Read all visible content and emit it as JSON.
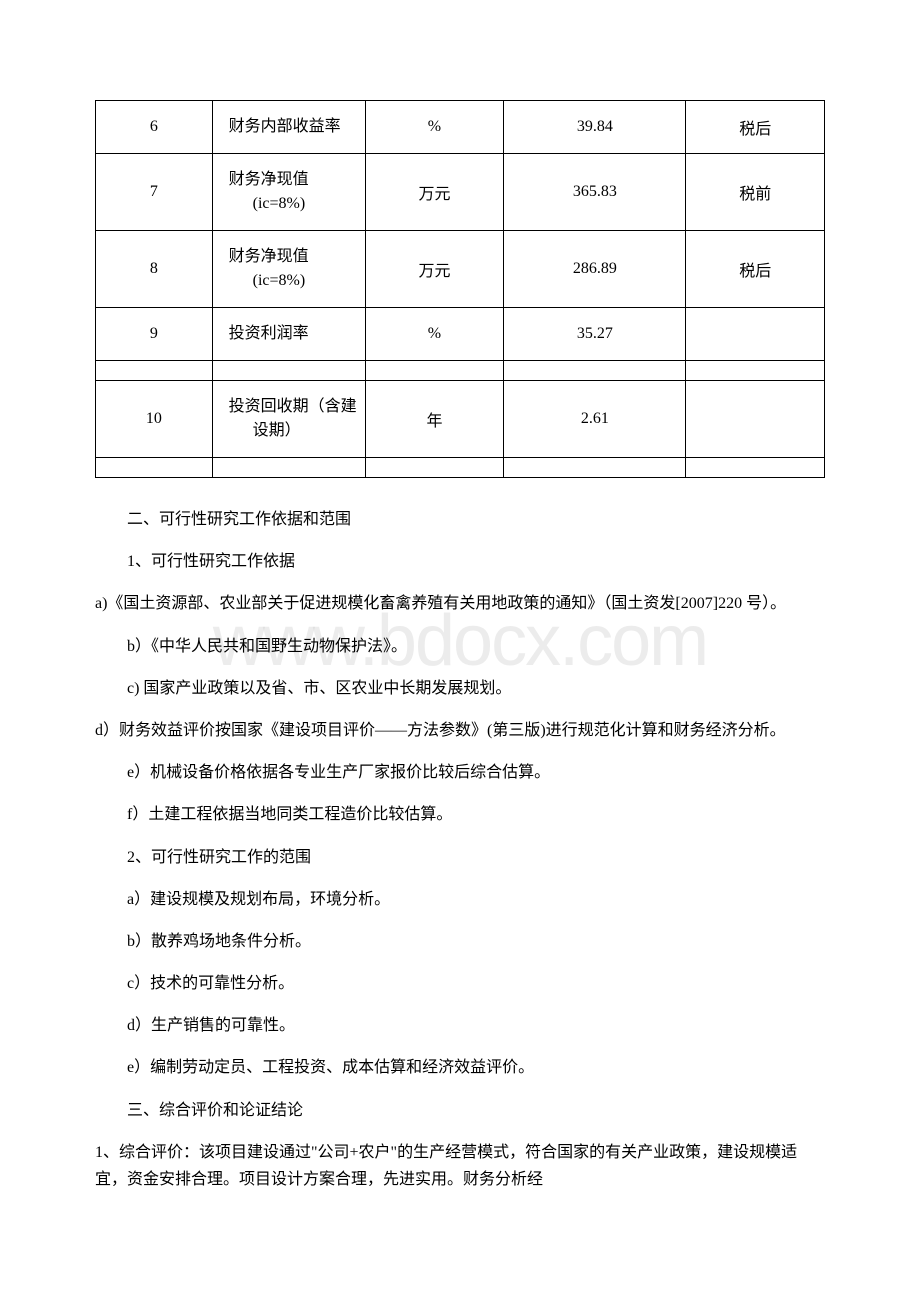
{
  "watermark": "www.bdocx.com",
  "table": {
    "rows": [
      {
        "num": "6",
        "name": "财务内部收益率",
        "unit": "%",
        "value": "39.84",
        "note": "税后"
      },
      {
        "num": "7",
        "name": "财务净现值(ic=8%)",
        "unit": "万元",
        "value": "365.83",
        "note": "税前"
      },
      {
        "num": "8",
        "name": "财务净现值(ic=8%)",
        "unit": "万元",
        "value": "286.89",
        "note": "税后"
      },
      {
        "num": "9",
        "name": "投资利润率",
        "unit": "%",
        "value": "35.27",
        "note": ""
      },
      {
        "spacer": true
      },
      {
        "num": "10",
        "name": "投资回收期（含建设期）",
        "unit": "年",
        "value": "2.61",
        "note": ""
      },
      {
        "spacer": true
      }
    ]
  },
  "paragraphs": [
    "二、可行性研究工作依据和范围",
    "1、可行性研究工作依据",
    "a)《国土资源部、农业部关于促进规模化畜禽养殖有关用地政策的通知》（国土资发[2007]220 号）。",
    "b）《中华人民共和国野生动物保护法》。",
    "c) 国家产业政策以及省、市、区农业中长期发展规划。",
    "d）财务效益评价按国家《建设项目评价——方法参数》(第三版)进行规范化计算和财务经济分析。",
    "e）机械设备价格依据各专业生产厂家报价比较后综合估算。",
    "f）土建工程依据当地同类工程造价比较估算。",
    "2、可行性研究工作的范围",
    "a）建设规模及规划布局，环境分析。",
    "b）散养鸡场地条件分析。",
    "c）技术的可靠性分析。",
    "d）生产销售的可靠性。",
    "e）编制劳动定员、工程投资、成本估算和经济效益评价。",
    "三、综合评价和论证结论",
    "1、综合评价：该项目建设通过\"公司+农户\"的生产经营模式，符合国家的有关产业政策，建设规模适宜，资金安排合理。项目设计方案合理，先进实用。财务分析经"
  ],
  "paragraph_indents": {
    "2": "0",
    "5": "0",
    "15": "0"
  }
}
